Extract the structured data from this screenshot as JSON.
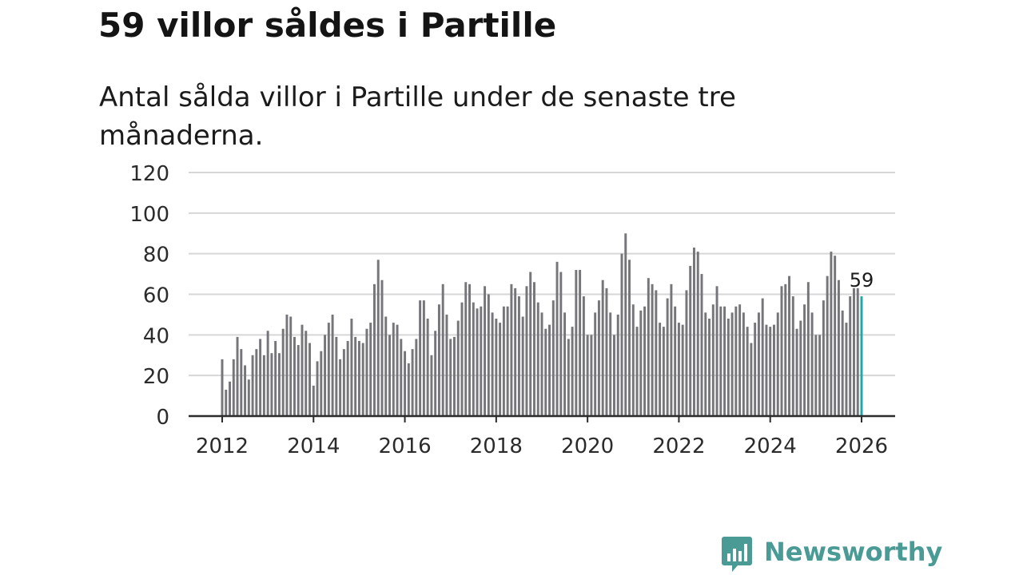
{
  "title": "59 villor såldes i Partille",
  "subtitle": "Antal sålda villor i Partille under de senaste tre månaderna.",
  "brand": {
    "name": "Newsworthy"
  },
  "colors": {
    "bar": "#76767a",
    "highlight": "#1fa9a4",
    "grid": "#d6d6d6",
    "axis": "#2b2b2b",
    "text": "#2b2b2b",
    "brand": "#4a9a96"
  },
  "chart_data": {
    "type": "bar",
    "title": "59 villor såldes i Partille",
    "subtitle": "Antal sålda villor i Partille under de senaste tre månaderna.",
    "xlabel": "",
    "ylabel": "",
    "ylim": [
      0,
      120
    ],
    "yticks": [
      0,
      20,
      40,
      60,
      80,
      100,
      120
    ],
    "ytick_labels": [
      "0",
      "20",
      "40",
      "60",
      "80",
      "100",
      "120"
    ],
    "xlim": [
      2012,
      2026
    ],
    "xticks": [
      2012,
      2014,
      2016,
      2018,
      2020,
      2022,
      2024,
      2026
    ],
    "xtick_labels": [
      "2012",
      "2014",
      "2016",
      "2018",
      "2020",
      "2022",
      "2024",
      "2026"
    ],
    "grid": true,
    "start": "2012-01",
    "interval": "month",
    "annotation": {
      "text": "59",
      "target": "last"
    },
    "values": [
      28,
      13,
      17,
      28,
      39,
      33,
      25,
      18,
      30,
      33,
      38,
      30,
      42,
      31,
      37,
      31,
      43,
      50,
      49,
      39,
      35,
      45,
      42,
      36,
      15,
      27,
      32,
      40,
      46,
      50,
      39,
      28,
      33,
      37,
      48,
      39,
      37,
      36,
      43,
      46,
      65,
      77,
      67,
      49,
      40,
      46,
      45,
      38,
      32,
      26,
      33,
      38,
      57,
      57,
      48,
      30,
      42,
      55,
      65,
      50,
      38,
      39,
      47,
      56,
      66,
      65,
      56,
      53,
      54,
      64,
      60,
      51,
      48,
      46,
      54,
      54,
      65,
      63,
      59,
      49,
      64,
      71,
      66,
      56,
      51,
      43,
      45,
      57,
      76,
      71,
      51,
      38,
      44,
      72,
      72,
      59,
      40,
      40,
      51,
      57,
      67,
      63,
      51,
      40,
      50,
      80,
      90,
      77,
      55,
      44,
      52,
      54,
      68,
      65,
      62,
      46,
      44,
      58,
      65,
      54,
      46,
      45,
      62,
      74,
      83,
      81,
      70,
      51,
      48,
      55,
      64,
      54,
      54,
      48,
      51,
      54,
      55,
      51,
      44,
      36,
      46,
      51,
      58,
      45,
      44,
      45,
      51,
      64,
      65,
      69,
      59,
      43,
      47,
      55,
      66,
      51,
      40,
      40,
      57,
      69,
      81,
      79,
      67,
      52,
      46,
      59,
      63,
      63,
      59
    ]
  }
}
